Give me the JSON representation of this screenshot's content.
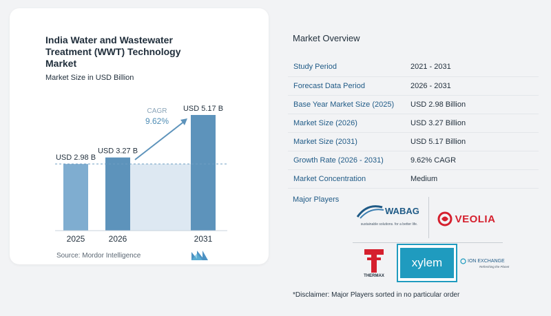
{
  "chart": {
    "title": "India Water and Wastewater Treatment (WWT) Technology Market",
    "subtitle": "Market Size in USD Billion",
    "cagr_label": "CAGR",
    "cagr_value": "9.62%",
    "source": "Source:  Mordor Intelligence"
  },
  "chart_data": {
    "type": "bar",
    "categories": [
      "2025",
      "2026",
      "2031"
    ],
    "values": [
      2.98,
      3.27,
      5.17
    ],
    "data_labels": [
      "USD 2.98 B",
      "USD 3.27 B",
      "USD 5.17 B"
    ],
    "title": "India Water and Wastewater Treatment (WWT) Technology Market",
    "subtitle": "Market Size in USD Billion",
    "ylim": [
      0,
      5.17
    ],
    "grid": false,
    "baseline_reference": 2.98
  },
  "overview": {
    "title": "Market Overview",
    "rows": [
      {
        "key": "Study Period",
        "value": "2021 - 2031"
      },
      {
        "key": "Forecast Data Period",
        "value": "2026 - 2031"
      },
      {
        "key": "Base Year Market Size (2025)",
        "value": "USD 2.98 Billion"
      },
      {
        "key": "Market Size (2026)",
        "value": "USD 3.27 Billion"
      },
      {
        "key": "Market Size (2031)",
        "value": "USD 5.17 Billion"
      },
      {
        "key": "Growth Rate (2026 - 2031)",
        "value": "9.62% CAGR"
      },
      {
        "key": "Market Concentration",
        "value": "Medium"
      }
    ],
    "players_label": "Major Players",
    "disclaimer": "*Disclaimer: Major Players sorted in no particular order"
  },
  "players": {
    "wabag": "WABAG",
    "wabag_tagline": "sustainable solutions. for a better life.",
    "veolia": "VEOLIA",
    "thermax": "THERMAX",
    "xylem": "xylem",
    "ion_exchange": "ION EXCHANGE",
    "ion_exchange_tagline": "Refreshing the Planet"
  },
  "colors": {
    "bar": "#5d93bb",
    "bar_light": "#7fadd0",
    "highlight": "#dde8f2",
    "accent": "#1f5a86",
    "veolia_red": "#d5202e",
    "xylem_teal": "#1f9bbf"
  }
}
